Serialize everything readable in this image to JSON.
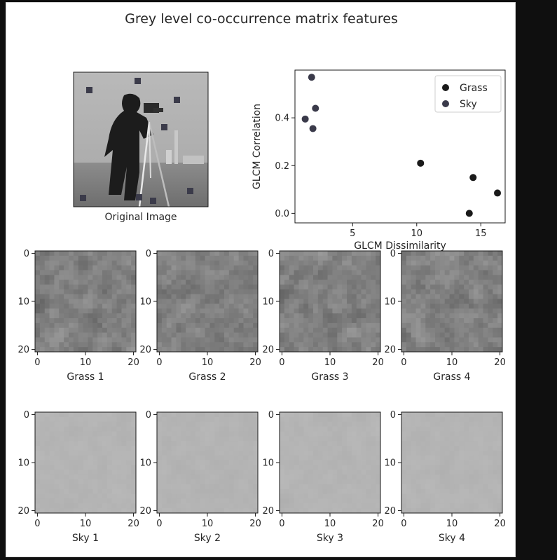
{
  "figure": {
    "title": "Grey level co-occurrence matrix features",
    "original_image_label": "Original Image"
  },
  "colors": {
    "background": "#0f0f0f",
    "grass_marker": "#1a1a1a",
    "sky_marker": "#3a3a4a",
    "patch_marker": "#3b3b4a"
  },
  "chart_data": [
    {
      "type": "scatter",
      "title": "",
      "xlabel": "GLCM Dissimilarity",
      "ylabel": "GLCM Correlation",
      "xlim": [
        0.5,
        16.9
      ],
      "ylim": [
        -0.04,
        0.6
      ],
      "xticks": [
        5,
        10,
        15
      ],
      "yticks": [
        0.0,
        0.2,
        0.4
      ],
      "ytick_labels": [
        "0.0",
        "0.2",
        "0.4"
      ],
      "grid": false,
      "legend": "top-right",
      "series": [
        {
          "name": "Grass",
          "color": "#1a1a1a",
          "x": [
            10.3,
            14.4,
            16.3,
            14.1
          ],
          "y": [
            0.21,
            0.15,
            0.085,
            0.0
          ]
        },
        {
          "name": "Sky",
          "color": "#3a3a4a",
          "x": [
            1.8,
            2.1,
            1.3,
            1.9
          ],
          "y": [
            0.57,
            0.44,
            0.395,
            0.355
          ]
        }
      ]
    },
    {
      "type": "heatmap",
      "panels": [
        {
          "label": "Grass 1",
          "group": "grass",
          "seed": 11
        },
        {
          "label": "Grass 2",
          "group": "grass",
          "seed": 23
        },
        {
          "label": "Grass 3",
          "group": "grass",
          "seed": 37
        },
        {
          "label": "Grass 4",
          "group": "grass",
          "seed": 51
        },
        {
          "label": "Sky 1",
          "group": "sky",
          "seed": 5
        },
        {
          "label": "Sky 2",
          "group": "sky",
          "seed": 17
        },
        {
          "label": "Sky 3",
          "group": "sky",
          "seed": 29
        },
        {
          "label": "Sky 4",
          "group": "sky",
          "seed": 41
        }
      ],
      "xlim": [
        0,
        20
      ],
      "ylim": [
        0,
        20
      ],
      "xticks": [
        0,
        10,
        20
      ],
      "yticks": [
        0,
        10,
        20
      ],
      "grid_size": 21
    }
  ],
  "edge_mark": "·"
}
